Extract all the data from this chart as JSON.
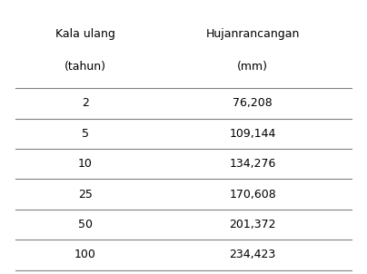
{
  "col1_header_line1": "Kala ulang",
  "col1_header_line2": "(tahun)",
  "col2_header_line1": "Hujanrancangan",
  "col2_header_line2": "(mm)",
  "rows": [
    [
      "2",
      "76,208"
    ],
    [
      "5",
      "109,144"
    ],
    [
      "10",
      "134,276"
    ],
    [
      "25",
      "170,608"
    ],
    [
      "50",
      "201,372"
    ],
    [
      "100",
      "234,423"
    ]
  ],
  "background_color": "#ffffff",
  "text_color": "#000000",
  "line_color": "#808080",
  "font_size": 9,
  "header_font_size": 9
}
